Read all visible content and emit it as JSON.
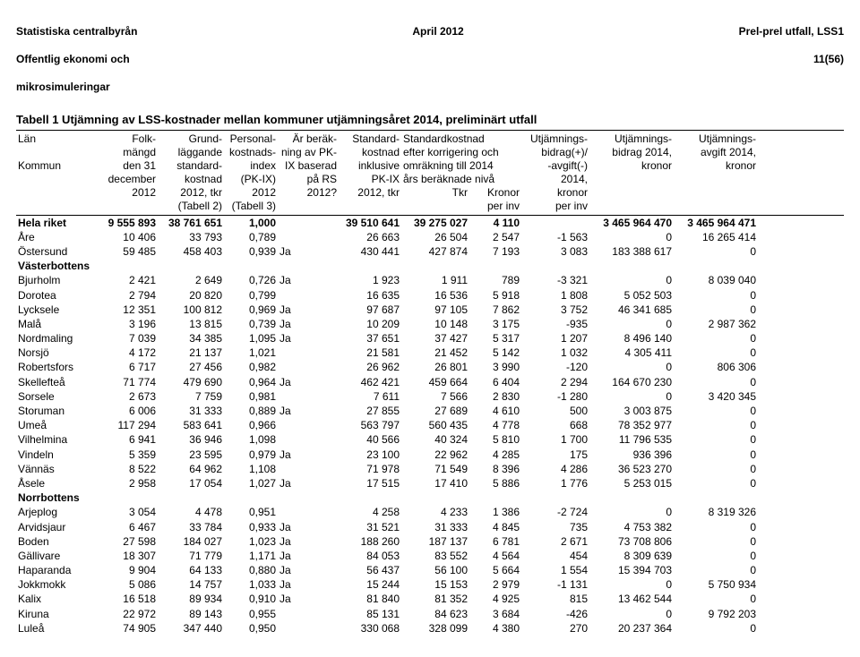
{
  "header": {
    "left_line1": "Statistiska centralbyrån",
    "left_line2": "Offentlig ekonomi och",
    "left_line3": "  mikrosimuleringar",
    "center": "April 2012",
    "right_line1": "Prel-prel utfall, LSS1",
    "right_line2": "11(56)"
  },
  "title": "Tabell 1   Utjämning av LSS-kostnader mellan kommuner utjämningsåret 2014, preliminärt utfall",
  "columns": {
    "col0": [
      "Län",
      "",
      "Kommun",
      "",
      "",
      ""
    ],
    "col1": [
      "Folk-",
      "mängd",
      "den 31",
      "december",
      "2012",
      ""
    ],
    "col2": [
      "Grund-",
      "läggande",
      "standard-",
      "kostnad",
      "2012, tkr",
      "(Tabell 2)"
    ],
    "col3": [
      "Personal-",
      "kostnads-",
      "index",
      "(PK-IX)",
      "2012",
      "(Tabell 3)"
    ],
    "col4": [
      "Är beräk-",
      "ning av PK-",
      "IX baserad",
      "på RS",
      "2012?",
      ""
    ],
    "col5": [
      "Standard-",
      "kostnad",
      "inklusive",
      "PK-IX",
      "2012, tkr",
      ""
    ],
    "col6_1": [
      "Standardkostnad",
      "efter korrigering och",
      "omräkning till 2014",
      "års beräknade nivå",
      "Tkr",
      ""
    ],
    "col7": [
      "",
      "",
      "",
      "",
      "Kronor",
      "per inv"
    ],
    "col8": [
      "Utjämnings-",
      "bidrag(+)/",
      "-avgift(-)",
      "2014,",
      "kronor",
      "per inv"
    ],
    "col9": [
      "Utjämnings-",
      "bidrag 2014,",
      "kronor",
      "",
      "",
      ""
    ],
    "col10": [
      "Utjämnings-",
      "avgift 2014,",
      "kronor",
      "",
      "",
      ""
    ]
  },
  "rows": [
    {
      "type": "data",
      "bold": true,
      "c0": "Hela riket",
      "c1": "9 555 893",
      "c2": "38 761 651",
      "c3": "1,000",
      "c4": "",
      "c5": "39 510 641",
      "c6": "39 275 027",
      "c7": "4 110",
      "c8": "",
      "c9": "3 465 964 470",
      "c10": "3 465 964 471"
    },
    {
      "type": "data",
      "c0": "Åre",
      "c1": "10 406",
      "c2": "33 793",
      "c3": "0,789",
      "c4": "",
      "c5": "26 663",
      "c6": "26 504",
      "c7": "2 547",
      "c8": "-1 563",
      "c9": "0",
      "c10": "16 265 414"
    },
    {
      "type": "data",
      "c0": "Östersund",
      "c1": "59 485",
      "c2": "458 403",
      "c3": "0,939",
      "c4": "Ja",
      "c5": "430 441",
      "c6": "427 874",
      "c7": "7 193",
      "c8": "3 083",
      "c9": "183 388 617",
      "c10": "0"
    },
    {
      "type": "group",
      "c0": "Västerbottens"
    },
    {
      "type": "data",
      "c0": "Bjurholm",
      "c1": "2 421",
      "c2": "2 649",
      "c3": "0,726",
      "c4": "Ja",
      "c5": "1 923",
      "c6": "1 911",
      "c7": "789",
      "c8": "-3 321",
      "c9": "0",
      "c10": "8 039 040"
    },
    {
      "type": "data",
      "c0": "Dorotea",
      "c1": "2 794",
      "c2": "20 820",
      "c3": "0,799",
      "c4": "",
      "c5": "16 635",
      "c6": "16 536",
      "c7": "5 918",
      "c8": "1 808",
      "c9": "5 052 503",
      "c10": "0"
    },
    {
      "type": "data",
      "c0": "Lycksele",
      "c1": "12 351",
      "c2": "100 812",
      "c3": "0,969",
      "c4": "Ja",
      "c5": "97 687",
      "c6": "97 105",
      "c7": "7 862",
      "c8": "3 752",
      "c9": "46 341 685",
      "c10": "0"
    },
    {
      "type": "data",
      "c0": "Malå",
      "c1": "3 196",
      "c2": "13 815",
      "c3": "0,739",
      "c4": "Ja",
      "c5": "10 209",
      "c6": "10 148",
      "c7": "3 175",
      "c8": "-935",
      "c9": "0",
      "c10": "2 987 362"
    },
    {
      "type": "data",
      "c0": "Nordmaling",
      "c1": "7 039",
      "c2": "34 385",
      "c3": "1,095",
      "c4": "Ja",
      "c5": "37 651",
      "c6": "37 427",
      "c7": "5 317",
      "c8": "1 207",
      "c9": "8 496 140",
      "c10": "0"
    },
    {
      "type": "data",
      "c0": "Norsjö",
      "c1": "4 172",
      "c2": "21 137",
      "c3": "1,021",
      "c4": "",
      "c5": "21 581",
      "c6": "21 452",
      "c7": "5 142",
      "c8": "1 032",
      "c9": "4 305 411",
      "c10": "0"
    },
    {
      "type": "data",
      "c0": "Robertsfors",
      "c1": "6 717",
      "c2": "27 456",
      "c3": "0,982",
      "c4": "",
      "c5": "26 962",
      "c6": "26 801",
      "c7": "3 990",
      "c8": "-120",
      "c9": "0",
      "c10": "806 306"
    },
    {
      "type": "data",
      "c0": "Skellefteå",
      "c1": "71 774",
      "c2": "479 690",
      "c3": "0,964",
      "c4": "Ja",
      "c5": "462 421",
      "c6": "459 664",
      "c7": "6 404",
      "c8": "2 294",
      "c9": "164 670 230",
      "c10": "0"
    },
    {
      "type": "data",
      "c0": "Sorsele",
      "c1": "2 673",
      "c2": "7 759",
      "c3": "0,981",
      "c4": "",
      "c5": "7 611",
      "c6": "7 566",
      "c7": "2 830",
      "c8": "-1 280",
      "c9": "0",
      "c10": "3 420 345"
    },
    {
      "type": "data",
      "c0": "Storuman",
      "c1": "6 006",
      "c2": "31 333",
      "c3": "0,889",
      "c4": "Ja",
      "c5": "27 855",
      "c6": "27 689",
      "c7": "4 610",
      "c8": "500",
      "c9": "3 003 875",
      "c10": "0"
    },
    {
      "type": "data",
      "c0": "Umeå",
      "c1": "117 294",
      "c2": "583 641",
      "c3": "0,966",
      "c4": "",
      "c5": "563 797",
      "c6": "560 435",
      "c7": "4 778",
      "c8": "668",
      "c9": "78 352 977",
      "c10": "0"
    },
    {
      "type": "data",
      "c0": "Vilhelmina",
      "c1": "6 941",
      "c2": "36 946",
      "c3": "1,098",
      "c4": "",
      "c5": "40 566",
      "c6": "40 324",
      "c7": "5 810",
      "c8": "1 700",
      "c9": "11 796 535",
      "c10": "0"
    },
    {
      "type": "data",
      "c0": "Vindeln",
      "c1": "5 359",
      "c2": "23 595",
      "c3": "0,979",
      "c4": "Ja",
      "c5": "23 100",
      "c6": "22 962",
      "c7": "4 285",
      "c8": "175",
      "c9": "936 396",
      "c10": "0"
    },
    {
      "type": "data",
      "c0": "Vännäs",
      "c1": "8 522",
      "c2": "64 962",
      "c3": "1,108",
      "c4": "",
      "c5": "71 978",
      "c6": "71 549",
      "c7": "8 396",
      "c8": "4 286",
      "c9": "36 523 270",
      "c10": "0"
    },
    {
      "type": "data",
      "c0": "Åsele",
      "c1": "2 958",
      "c2": "17 054",
      "c3": "1,027",
      "c4": "Ja",
      "c5": "17 515",
      "c6": "17 410",
      "c7": "5 886",
      "c8": "1 776",
      "c9": "5 253 015",
      "c10": "0"
    },
    {
      "type": "group",
      "c0": "Norrbottens"
    },
    {
      "type": "data",
      "c0": "Arjeplog",
      "c1": "3 054",
      "c2": "4 478",
      "c3": "0,951",
      "c4": "",
      "c5": "4 258",
      "c6": "4 233",
      "c7": "1 386",
      "c8": "-2 724",
      "c9": "0",
      "c10": "8 319 326"
    },
    {
      "type": "data",
      "c0": "Arvidsjaur",
      "c1": "6 467",
      "c2": "33 784",
      "c3": "0,933",
      "c4": "Ja",
      "c5": "31 521",
      "c6": "31 333",
      "c7": "4 845",
      "c8": "735",
      "c9": "4 753 382",
      "c10": "0"
    },
    {
      "type": "data",
      "c0": "Boden",
      "c1": "27 598",
      "c2": "184 027",
      "c3": "1,023",
      "c4": "Ja",
      "c5": "188 260",
      "c6": "187 137",
      "c7": "6 781",
      "c8": "2 671",
      "c9": "73 708 806",
      "c10": "0"
    },
    {
      "type": "data",
      "c0": "Gällivare",
      "c1": "18 307",
      "c2": "71 779",
      "c3": "1,171",
      "c4": "Ja",
      "c5": "84 053",
      "c6": "83 552",
      "c7": "4 564",
      "c8": "454",
      "c9": "8 309 639",
      "c10": "0"
    },
    {
      "type": "data",
      "c0": "Haparanda",
      "c1": "9 904",
      "c2": "64 133",
      "c3": "0,880",
      "c4": "Ja",
      "c5": "56 437",
      "c6": "56 100",
      "c7": "5 664",
      "c8": "1 554",
      "c9": "15 394 703",
      "c10": "0"
    },
    {
      "type": "data",
      "c0": "Jokkmokk",
      "c1": "5 086",
      "c2": "14 757",
      "c3": "1,033",
      "c4": "Ja",
      "c5": "15 244",
      "c6": "15 153",
      "c7": "2 979",
      "c8": "-1 131",
      "c9": "0",
      "c10": "5 750 934"
    },
    {
      "type": "data",
      "c0": "Kalix",
      "c1": "16 518",
      "c2": "89 934",
      "c3": "0,910",
      "c4": "Ja",
      "c5": "81 840",
      "c6": "81 352",
      "c7": "4 925",
      "c8": "815",
      "c9": "13 462 544",
      "c10": "0"
    },
    {
      "type": "data",
      "c0": "Kiruna",
      "c1": "22 972",
      "c2": "89 143",
      "c3": "0,955",
      "c4": "",
      "c5": "85 131",
      "c6": "84 623",
      "c7": "3 684",
      "c8": "-426",
      "c9": "0",
      "c10": "9 792 203"
    },
    {
      "type": "data",
      "c0": "Luleå",
      "c1": "74 905",
      "c2": "347 440",
      "c3": "0,950",
      "c4": "",
      "c5": "330 068",
      "c6": "328 099",
      "c7": "4 380",
      "c8": "270",
      "c9": "20 237 364",
      "c10": "0"
    }
  ]
}
